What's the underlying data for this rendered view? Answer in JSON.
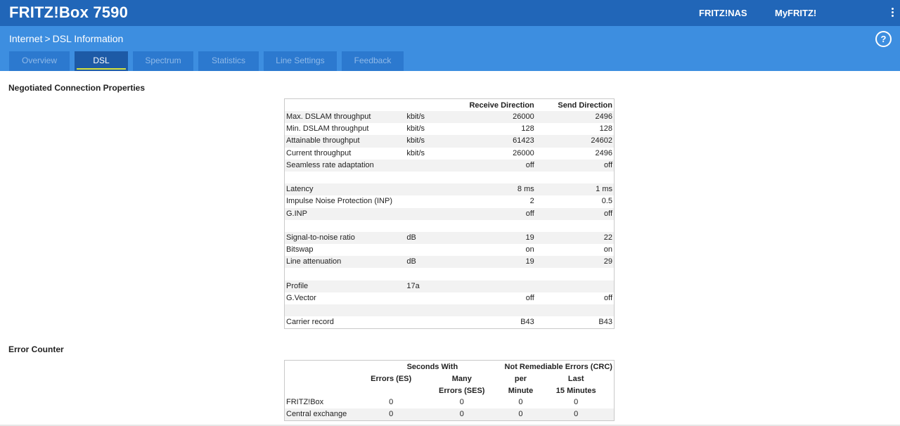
{
  "app": {
    "title": "FRITZ!Box 7590",
    "nav": [
      "FRITZ!NAS",
      "MyFRITZ!"
    ]
  },
  "breadcrumb": {
    "parent": "Internet",
    "separator": ">",
    "current": "DSL Information"
  },
  "tabs": [
    {
      "label": "Overview"
    },
    {
      "label": "DSL",
      "active": true
    },
    {
      "label": "Spectrum"
    },
    {
      "label": "Statistics"
    },
    {
      "label": "Line Settings"
    },
    {
      "label": "Feedback"
    }
  ],
  "help_label": "?",
  "negotiated": {
    "title": "Negotiated Connection Properties",
    "headers": [
      "",
      "",
      "Receive Direction",
      "Send Direction"
    ],
    "rows": [
      [
        "Max. DSLAM throughput",
        "kbit/s",
        "26000",
        "2496"
      ],
      [
        "Min. DSLAM throughput",
        "kbit/s",
        "128",
        "128"
      ],
      [
        "Attainable throughput",
        "kbit/s",
        "61423",
        "24602"
      ],
      [
        "Current throughput",
        "kbit/s",
        "26000",
        "2496"
      ],
      [
        "Seamless rate adaptation",
        "",
        "off",
        "off"
      ],
      [
        "",
        "",
        "",
        ""
      ],
      [
        "Latency",
        "",
        "8 ms",
        "1 ms"
      ],
      [
        "Impulse Noise Protection (INP)",
        "",
        "2",
        "0.5"
      ],
      [
        "G.INP",
        "",
        "off",
        "off"
      ],
      [
        "",
        "",
        "",
        ""
      ],
      [
        "Signal-to-noise ratio",
        "dB",
        "19",
        "22"
      ],
      [
        "Bitswap",
        "",
        "on",
        "on"
      ],
      [
        "Line attenuation",
        "dB",
        "19",
        "29"
      ],
      [
        "",
        "",
        "",
        ""
      ],
      [
        "Profile",
        "17a",
        "",
        ""
      ],
      [
        "G.Vector",
        "",
        "off",
        "off"
      ],
      [
        "",
        "",
        "",
        ""
      ],
      [
        "Carrier record",
        "",
        "B43",
        "B43"
      ]
    ]
  },
  "errors": {
    "title": "Error Counter",
    "group_headers": [
      "Seconds With",
      "Not Remediable Errors (CRC)"
    ],
    "col_headers": [
      [
        "Errors (ES)"
      ],
      [
        "Many",
        "Errors (SES)"
      ],
      [
        "per",
        "Minute"
      ],
      [
        "Last",
        "15 Minutes"
      ]
    ],
    "rows": [
      [
        "FRITZ!Box",
        "0",
        "0",
        "0",
        "0"
      ],
      [
        "Central exchange",
        "0",
        "0",
        "0",
        "0"
      ]
    ]
  }
}
